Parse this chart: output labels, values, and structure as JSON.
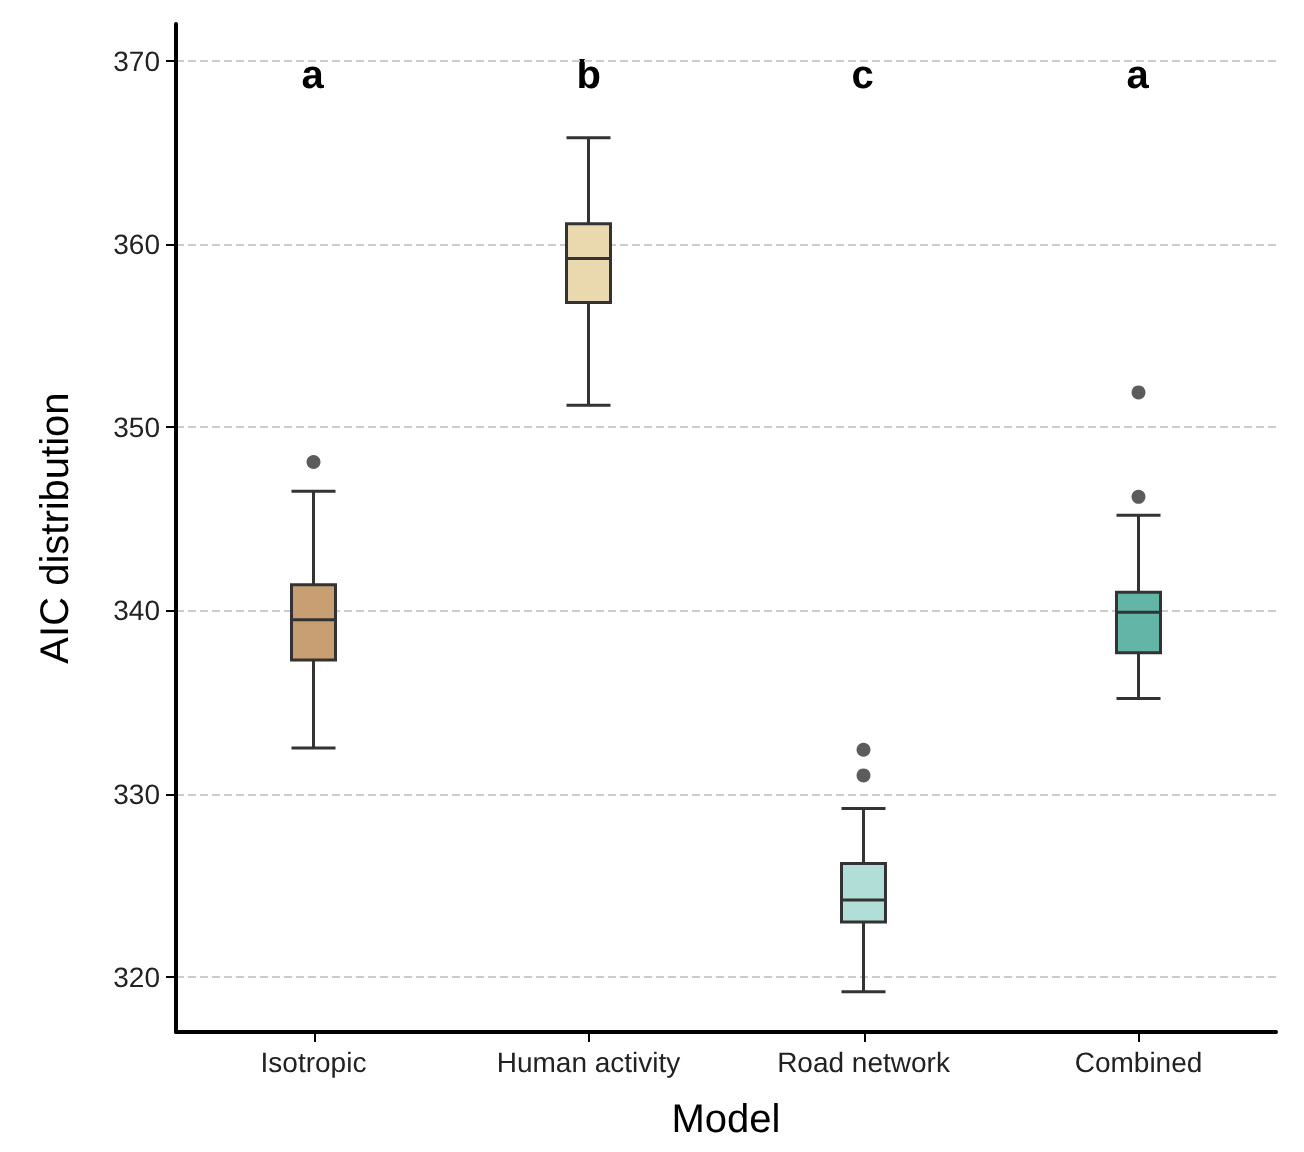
{
  "chart_data": {
    "type": "box",
    "xlabel": "Model",
    "ylabel": "AIC distribution",
    "categories": [
      "Isotropic",
      "Human activity",
      "Road network",
      "Combined"
    ],
    "colors": [
      "#c89f72",
      "#ead9ae",
      "#b2ded8",
      "#63b5a8"
    ],
    "boxes": [
      {
        "low": 332.5,
        "q1": 337.3,
        "median": 339.5,
        "q3": 341.4,
        "high": 346.5,
        "outliers": [
          348.1
        ]
      },
      {
        "low": 351.2,
        "q1": 356.8,
        "median": 359.2,
        "q3": 361.1,
        "high": 365.8
      },
      {
        "low": 319.2,
        "q1": 323.0,
        "median": 324.2,
        "q3": 326.2,
        "high": 329.2,
        "outliers": [
          331.0,
          332.4
        ]
      },
      {
        "low": 335.2,
        "q1": 337.7,
        "median": 339.9,
        "q3": 341.0,
        "high": 345.2,
        "outliers": [
          346.2,
          351.9
        ]
      }
    ],
    "annotations": [
      "a",
      "b",
      "c",
      "a"
    ],
    "ylim": [
      317,
      372
    ],
    "yticks": [
      320,
      330,
      340,
      350,
      360,
      370
    ],
    "grid": "y"
  }
}
